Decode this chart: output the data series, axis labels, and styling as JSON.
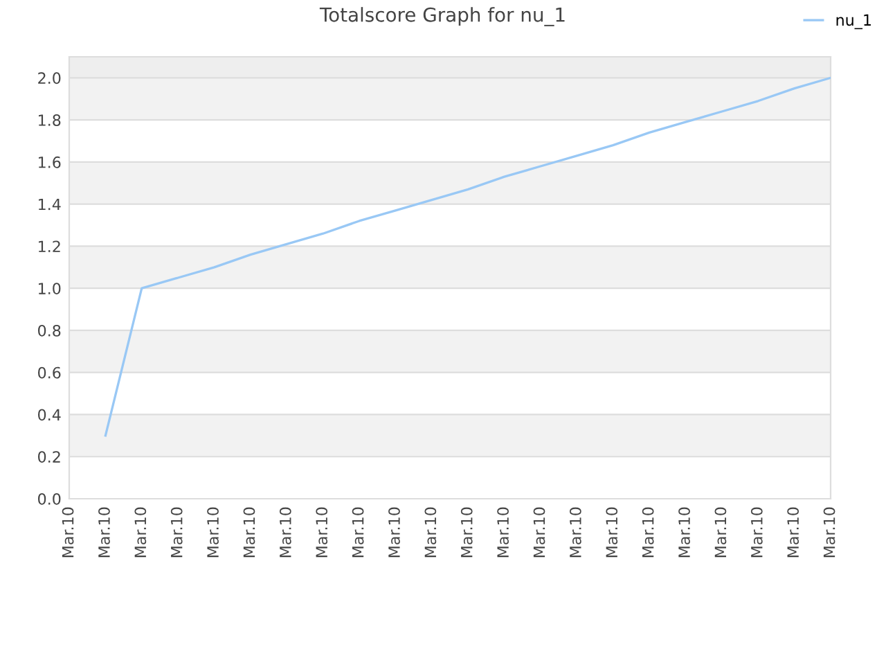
{
  "chart_data": {
    "type": "line",
    "title": "Totalscore Graph for nu_1",
    "categories": [
      "Mar.10",
      "Mar.10",
      "Mar.10",
      "Mar.10",
      "Mar.10",
      "Mar.10",
      "Mar.10",
      "Mar.10",
      "Mar.10",
      "Mar.10",
      "Mar.10",
      "Mar.10",
      "Mar.10",
      "Mar.10",
      "Mar.10",
      "Mar.10",
      "Mar.10",
      "Mar.10",
      "Mar.10",
      "Mar.10",
      "Mar.10",
      "Mar.10"
    ],
    "ylim": [
      0,
      2.1
    ],
    "yticks": [
      {
        "value": 0,
        "label": "0.0"
      },
      0.2,
      0.4,
      0.6,
      0.8,
      {
        "value": 1,
        "label": "1.0"
      },
      1.2,
      1.4,
      1.6,
      1.8,
      {
        "value": 2,
        "label": "2.0"
      }
    ],
    "series": [
      {
        "name": "nu_1",
        "color": "#99c8f5",
        "values": [
          null,
          0.3,
          1.0,
          1.05,
          1.1,
          1.16,
          1.21,
          1.26,
          1.32,
          1.37,
          1.42,
          1.47,
          1.53,
          1.58,
          1.63,
          1.68,
          1.74,
          1.79,
          1.84,
          1.89,
          1.95,
          2.0
        ]
      }
    ],
    "bands": [
      {
        "axis": "y",
        "from": 0.2,
        "to": 0.4,
        "color": "#f2f2f2"
      },
      {
        "axis": "y",
        "from": 0.6,
        "to": 0.8,
        "color": "#f2f2f2"
      },
      {
        "axis": "y",
        "from": 1.0,
        "to": 1.2,
        "color": "#f2f2f2"
      },
      {
        "axis": "y",
        "from": 1.4,
        "to": 1.6,
        "color": "#f2f2f2"
      },
      {
        "axis": "y",
        "from": 1.8,
        "to": 2.0,
        "color": "#f2f2f2"
      },
      {
        "axis": "y",
        "from": 2.0,
        "to": 2.1,
        "color": "#eeeeee"
      }
    ],
    "grid": "y",
    "legend": "top right",
    "marker": "none",
    "line_style": "solid"
  }
}
